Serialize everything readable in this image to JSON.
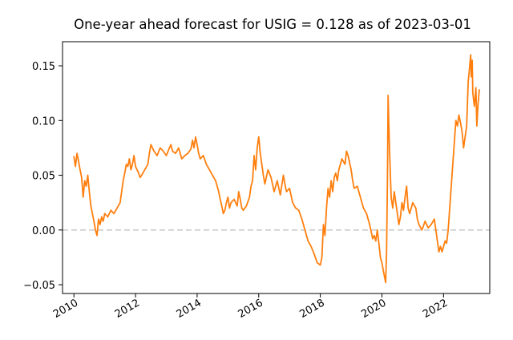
{
  "chart_data": {
    "type": "line",
    "title": "One-year ahead forecast for USIG = 0.128 as of 2023-03-01",
    "xlabel": "",
    "ylabel": "",
    "xlim": [
      2009.63,
      2023.5
    ],
    "ylim": [
      -0.058,
      0.172
    ],
    "x_ticks": [
      {
        "value": 2010,
        "label": "2010"
      },
      {
        "value": 2012,
        "label": "2012"
      },
      {
        "value": 2014,
        "label": "2014"
      },
      {
        "value": 2016,
        "label": "2016"
      },
      {
        "value": 2018,
        "label": "2018"
      },
      {
        "value": 2020,
        "label": "2020"
      },
      {
        "value": 2022,
        "label": "2022"
      }
    ],
    "y_ticks": [
      {
        "value": -0.05,
        "label": "−0.05"
      },
      {
        "value": 0.0,
        "label": "0.00"
      },
      {
        "value": 0.05,
        "label": "0.05"
      },
      {
        "value": 0.1,
        "label": "0.10"
      },
      {
        "value": 0.15,
        "label": "0.15"
      }
    ],
    "reference_line": {
      "y": 0.0,
      "style": "dashed",
      "color": "#cccccc"
    },
    "grid": false,
    "legend": "none",
    "series": [
      {
        "color": "#ff7f0e",
        "points": [
          [
            2010.0,
            0.067
          ],
          [
            2010.05,
            0.058
          ],
          [
            2010.1,
            0.07
          ],
          [
            2010.15,
            0.063
          ],
          [
            2010.2,
            0.055
          ],
          [
            2010.25,
            0.048
          ],
          [
            2010.3,
            0.03
          ],
          [
            2010.35,
            0.045
          ],
          [
            2010.4,
            0.04
          ],
          [
            2010.45,
            0.05
          ],
          [
            2010.5,
            0.035
          ],
          [
            2010.55,
            0.022
          ],
          [
            2010.6,
            0.015
          ],
          [
            2010.65,
            0.008
          ],
          [
            2010.7,
            0.0
          ],
          [
            2010.75,
            -0.005
          ],
          [
            2010.8,
            0.01
          ],
          [
            2010.85,
            0.005
          ],
          [
            2010.9,
            0.012
          ],
          [
            2010.95,
            0.008
          ],
          [
            2011.0,
            0.015
          ],
          [
            2011.1,
            0.012
          ],
          [
            2011.2,
            0.018
          ],
          [
            2011.3,
            0.015
          ],
          [
            2011.4,
            0.02
          ],
          [
            2011.5,
            0.025
          ],
          [
            2011.55,
            0.035
          ],
          [
            2011.6,
            0.045
          ],
          [
            2011.65,
            0.052
          ],
          [
            2011.7,
            0.06
          ],
          [
            2011.75,
            0.058
          ],
          [
            2011.8,
            0.065
          ],
          [
            2011.85,
            0.055
          ],
          [
            2011.9,
            0.06
          ],
          [
            2011.95,
            0.068
          ],
          [
            2012.0,
            0.058
          ],
          [
            2012.05,
            0.055
          ],
          [
            2012.1,
            0.052
          ],
          [
            2012.15,
            0.048
          ],
          [
            2012.2,
            0.05
          ],
          [
            2012.3,
            0.055
          ],
          [
            2012.4,
            0.06
          ],
          [
            2012.45,
            0.07
          ],
          [
            2012.5,
            0.078
          ],
          [
            2012.55,
            0.075
          ],
          [
            2012.6,
            0.072
          ],
          [
            2012.7,
            0.068
          ],
          [
            2012.8,
            0.075
          ],
          [
            2012.9,
            0.072
          ],
          [
            2013.0,
            0.068
          ],
          [
            2013.1,
            0.075
          ],
          [
            2013.15,
            0.078
          ],
          [
            2013.2,
            0.072
          ],
          [
            2013.3,
            0.07
          ],
          [
            2013.4,
            0.075
          ],
          [
            2013.5,
            0.065
          ],
          [
            2013.6,
            0.068
          ],
          [
            2013.7,
            0.07
          ],
          [
            2013.8,
            0.074
          ],
          [
            2013.85,
            0.082
          ],
          [
            2013.9,
            0.075
          ],
          [
            2013.95,
            0.085
          ],
          [
            2014.0,
            0.078
          ],
          [
            2014.05,
            0.07
          ],
          [
            2014.1,
            0.065
          ],
          [
            2014.2,
            0.068
          ],
          [
            2014.3,
            0.06
          ],
          [
            2014.4,
            0.055
          ],
          [
            2014.5,
            0.05
          ],
          [
            2014.6,
            0.045
          ],
          [
            2014.7,
            0.035
          ],
          [
            2014.75,
            0.028
          ],
          [
            2014.8,
            0.022
          ],
          [
            2014.85,
            0.015
          ],
          [
            2014.9,
            0.018
          ],
          [
            2014.95,
            0.025
          ],
          [
            2015.0,
            0.03
          ],
          [
            2015.05,
            0.02
          ],
          [
            2015.1,
            0.025
          ],
          [
            2015.2,
            0.028
          ],
          [
            2015.3,
            0.022
          ],
          [
            2015.35,
            0.035
          ],
          [
            2015.4,
            0.028
          ],
          [
            2015.45,
            0.02
          ],
          [
            2015.5,
            0.018
          ],
          [
            2015.6,
            0.022
          ],
          [
            2015.7,
            0.03
          ],
          [
            2015.75,
            0.04
          ],
          [
            2015.8,
            0.045
          ],
          [
            2015.85,
            0.068
          ],
          [
            2015.9,
            0.055
          ],
          [
            2015.95,
            0.075
          ],
          [
            2016.0,
            0.085
          ],
          [
            2016.05,
            0.07
          ],
          [
            2016.1,
            0.06
          ],
          [
            2016.15,
            0.05
          ],
          [
            2016.2,
            0.042
          ],
          [
            2016.3,
            0.055
          ],
          [
            2016.4,
            0.048
          ],
          [
            2016.5,
            0.035
          ],
          [
            2016.6,
            0.045
          ],
          [
            2016.7,
            0.032
          ],
          [
            2016.8,
            0.05
          ],
          [
            2016.85,
            0.042
          ],
          [
            2016.9,
            0.035
          ],
          [
            2017.0,
            0.038
          ],
          [
            2017.1,
            0.025
          ],
          [
            2017.2,
            0.02
          ],
          [
            2017.3,
            0.018
          ],
          [
            2017.4,
            0.01
          ],
          [
            2017.5,
            0.0
          ],
          [
            2017.55,
            -0.005
          ],
          [
            2017.6,
            -0.01
          ],
          [
            2017.7,
            -0.015
          ],
          [
            2017.8,
            -0.022
          ],
          [
            2017.9,
            -0.03
          ],
          [
            2018.0,
            -0.032
          ],
          [
            2018.05,
            -0.025
          ],
          [
            2018.1,
            0.005
          ],
          [
            2018.15,
            -0.005
          ],
          [
            2018.2,
            0.02
          ],
          [
            2018.25,
            0.038
          ],
          [
            2018.3,
            0.03
          ],
          [
            2018.35,
            0.045
          ],
          [
            2018.4,
            0.035
          ],
          [
            2018.45,
            0.048
          ],
          [
            2018.5,
            0.052
          ],
          [
            2018.55,
            0.045
          ],
          [
            2018.6,
            0.055
          ],
          [
            2018.7,
            0.065
          ],
          [
            2018.8,
            0.06
          ],
          [
            2018.85,
            0.072
          ],
          [
            2018.9,
            0.068
          ],
          [
            2019.0,
            0.055
          ],
          [
            2019.05,
            0.045
          ],
          [
            2019.1,
            0.038
          ],
          [
            2019.2,
            0.04
          ],
          [
            2019.3,
            0.03
          ],
          [
            2019.4,
            0.02
          ],
          [
            2019.5,
            0.015
          ],
          [
            2019.6,
            0.005
          ],
          [
            2019.7,
            -0.008
          ],
          [
            2019.75,
            -0.005
          ],
          [
            2019.8,
            -0.01
          ],
          [
            2019.85,
            0.0
          ],
          [
            2019.9,
            -0.012
          ],
          [
            2019.95,
            -0.025
          ],
          [
            2020.0,
            -0.03
          ],
          [
            2020.05,
            -0.038
          ],
          [
            2020.1,
            -0.045
          ],
          [
            2020.12,
            -0.048
          ],
          [
            2020.15,
            -0.02
          ],
          [
            2020.18,
            0.05
          ],
          [
            2020.2,
            0.123
          ],
          [
            2020.22,
            0.1
          ],
          [
            2020.25,
            0.07
          ],
          [
            2020.28,
            0.045
          ],
          [
            2020.3,
            0.03
          ],
          [
            2020.35,
            0.02
          ],
          [
            2020.4,
            0.035
          ],
          [
            2020.45,
            0.025
          ],
          [
            2020.5,
            0.015
          ],
          [
            2020.55,
            0.005
          ],
          [
            2020.6,
            0.012
          ],
          [
            2020.65,
            0.025
          ],
          [
            2020.7,
            0.018
          ],
          [
            2020.75,
            0.03
          ],
          [
            2020.8,
            0.04
          ],
          [
            2020.85,
            0.02
          ],
          [
            2020.9,
            0.015
          ],
          [
            2021.0,
            0.025
          ],
          [
            2021.1,
            0.02
          ],
          [
            2021.15,
            0.01
          ],
          [
            2021.2,
            0.005
          ],
          [
            2021.3,
            0.0
          ],
          [
            2021.4,
            0.008
          ],
          [
            2021.5,
            0.002
          ],
          [
            2021.6,
            0.005
          ],
          [
            2021.7,
            0.01
          ],
          [
            2021.75,
            0.0
          ],
          [
            2021.8,
            -0.01
          ],
          [
            2021.85,
            -0.02
          ],
          [
            2021.9,
            -0.015
          ],
          [
            2021.95,
            -0.02
          ],
          [
            2022.0,
            -0.015
          ],
          [
            2022.05,
            -0.01
          ],
          [
            2022.1,
            -0.012
          ],
          [
            2022.15,
            0.0
          ],
          [
            2022.2,
            0.02
          ],
          [
            2022.25,
            0.04
          ],
          [
            2022.3,
            0.06
          ],
          [
            2022.35,
            0.08
          ],
          [
            2022.4,
            0.1
          ],
          [
            2022.45,
            0.095
          ],
          [
            2022.5,
            0.105
          ],
          [
            2022.55,
            0.098
          ],
          [
            2022.6,
            0.09
          ],
          [
            2022.65,
            0.075
          ],
          [
            2022.7,
            0.085
          ],
          [
            2022.75,
            0.095
          ],
          [
            2022.8,
            0.135
          ],
          [
            2022.85,
            0.15
          ],
          [
            2022.88,
            0.16
          ],
          [
            2022.9,
            0.14
          ],
          [
            2022.93,
            0.155
          ],
          [
            2022.95,
            0.125
          ],
          [
            2023.0,
            0.113
          ],
          [
            2023.05,
            0.13
          ],
          [
            2023.08,
            0.095
          ],
          [
            2023.12,
            0.115
          ],
          [
            2023.16,
            0.128
          ]
        ]
      }
    ]
  }
}
